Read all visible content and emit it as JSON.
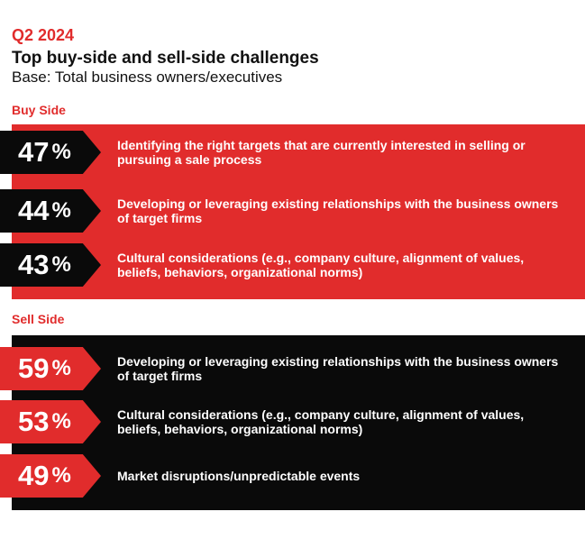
{
  "header": {
    "quarter": "Q2 2024",
    "title": "Top buy-side and sell-side challenges",
    "subtitle": "Base: Total business owners/executives"
  },
  "colors": {
    "red": "#e12c2c",
    "black": "#0a0a0a"
  },
  "chart_data": {
    "type": "bar",
    "title": "Top buy-side and sell-side challenges",
    "subtitle": "Base: Total business owners/executives",
    "unit": "%",
    "groups": [
      {
        "name": "Buy Side",
        "items": [
          {
            "value": 47,
            "label": "Identifying the right targets that are currently interested in selling or pursuing a sale process"
          },
          {
            "value": 44,
            "label": "Developing or leveraging existing relationships with the business owners of target firms"
          },
          {
            "value": 43,
            "label": "Cultural considerations (e.g., company culture, alignment of values, beliefs, behaviors, organizational norms)"
          }
        ]
      },
      {
        "name": "Sell Side",
        "items": [
          {
            "value": 59,
            "label": "Developing or leveraging existing relationships with the business owners of target firms"
          },
          {
            "value": 53,
            "label": "Cultural considerations (e.g., company culture, alignment of values, beliefs, behaviors, organizational norms)"
          },
          {
            "value": 49,
            "label": "Market disruptions/unpredictable events"
          }
        ]
      }
    ]
  }
}
